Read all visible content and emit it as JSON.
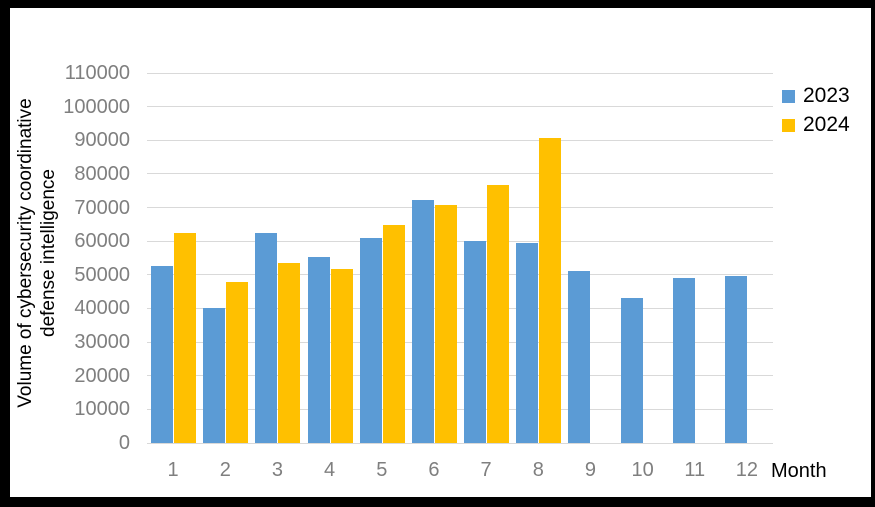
{
  "colors": {
    "background": "#000000",
    "panel": "#FFFFFF",
    "gridline": "#D9D9D9",
    "tick_text": "#7F7F7F",
    "axis_title_text": "#000000",
    "series_2023": "#5B9BD5",
    "series_2024": "#FFC000"
  },
  "chart_data": {
    "type": "bar",
    "title": "",
    "xlabel": "Month",
    "ylabel": "Volume of cybersecurity coordinative defense intelligence",
    "ylabel_lines": [
      "Volume of cybersecurity coordinative",
      "defense intelligence"
    ],
    "categories": [
      "1",
      "2",
      "3",
      "4",
      "5",
      "6",
      "7",
      "8",
      "9",
      "10",
      "11",
      "12"
    ],
    "series": [
      {
        "name": "2023",
        "color": "#5B9BD5",
        "values": [
          52600,
          40000,
          62400,
          55200,
          61000,
          72200,
          60200,
          59400,
          51000,
          43000,
          49100,
          49700
        ]
      },
      {
        "name": "2024",
        "color": "#FFC000",
        "values": [
          62500,
          47800,
          53500,
          51600,
          64800,
          70700,
          76600,
          90600,
          null,
          null,
          null,
          null
        ]
      }
    ],
    "ylim": [
      0,
      110000
    ],
    "ytick_step": 10000,
    "yticks": [
      "0",
      "10000",
      "20000",
      "30000",
      "40000",
      "50000",
      "60000",
      "70000",
      "80000",
      "90000",
      "100000",
      "110000"
    ],
    "grid": true,
    "legend_position": "top-right"
  }
}
